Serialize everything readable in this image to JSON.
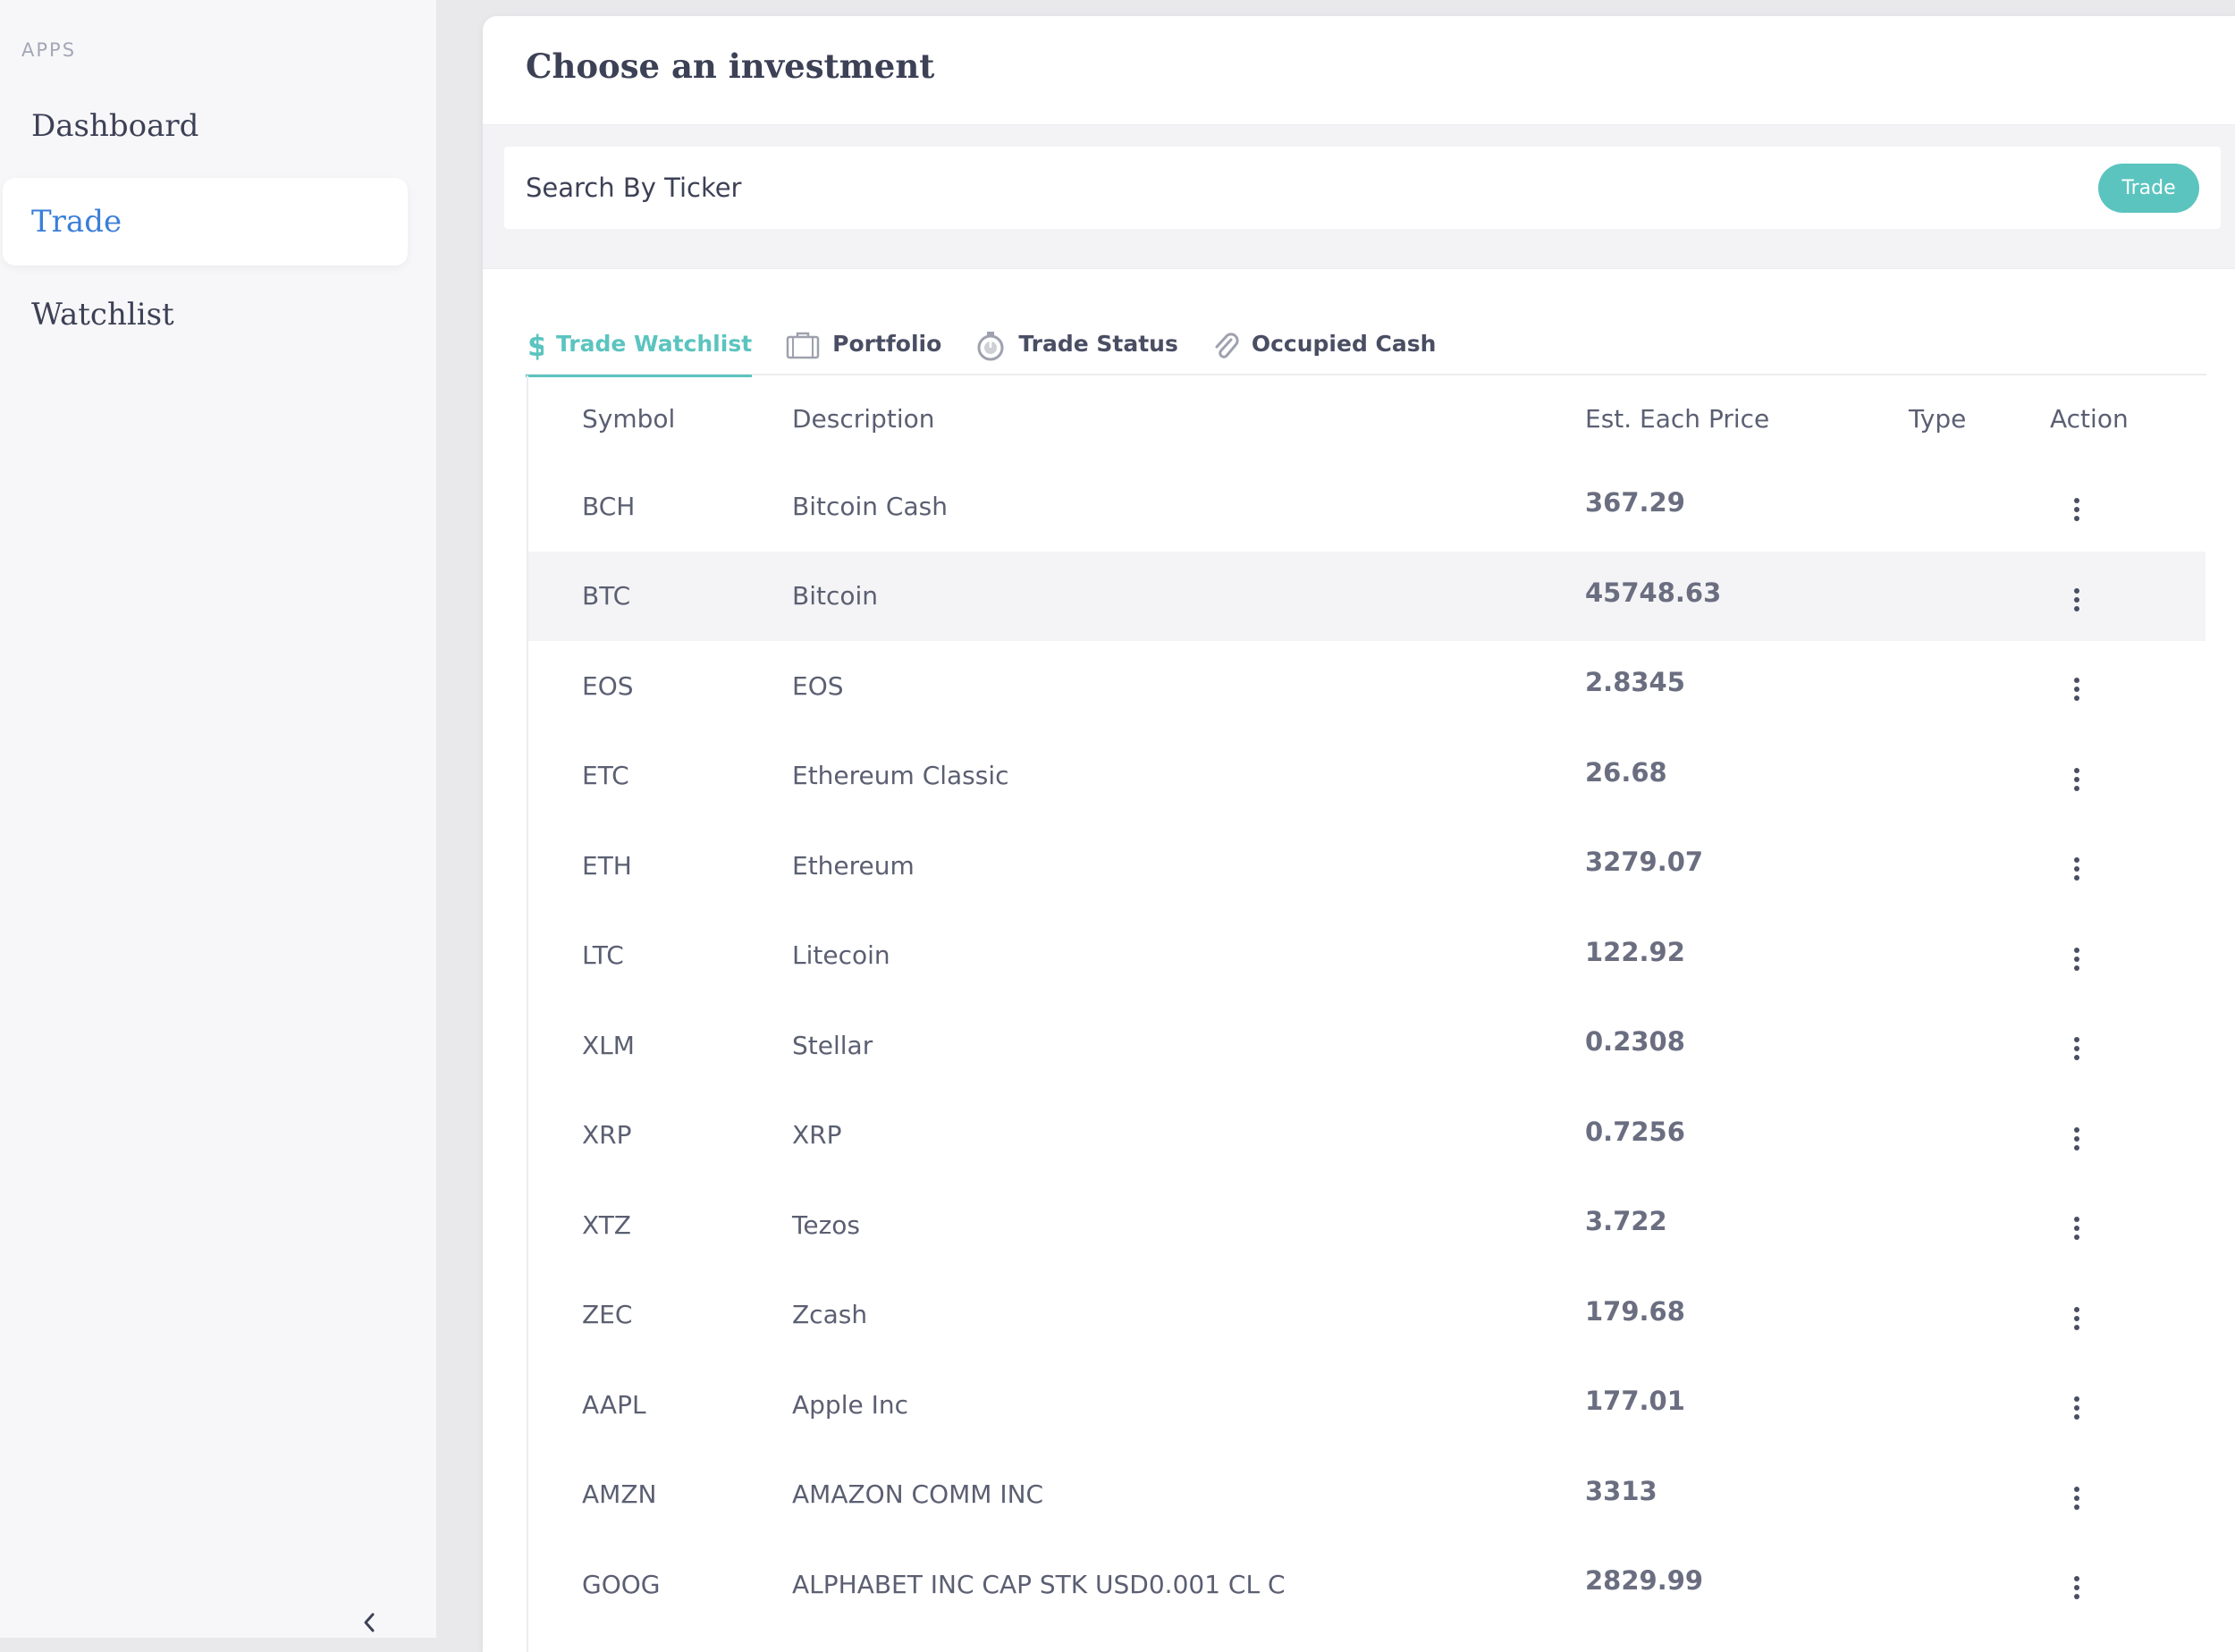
{
  "sidebar": {
    "section_label": "APPS",
    "items": [
      {
        "label": "Dashboard"
      },
      {
        "label": "Trade"
      },
      {
        "label": "Watchlist"
      }
    ]
  },
  "panel": {
    "title": "Choose an investment"
  },
  "search": {
    "placeholder": "Search By Ticker",
    "button_label": "Trade"
  },
  "tabs": [
    {
      "label": "Trade Watchlist",
      "icon": "dollar-icon"
    },
    {
      "label": "Portfolio",
      "icon": "briefcase-icon"
    },
    {
      "label": "Trade Status",
      "icon": "stopwatch-icon"
    },
    {
      "label": "Occupied Cash",
      "icon": "paperclip-icon"
    }
  ],
  "table": {
    "headers": {
      "symbol": "Symbol",
      "description": "Description",
      "price": "Est. Each Price",
      "type": "Type",
      "action": "Action"
    },
    "rows": [
      {
        "symbol": "BCH",
        "description": "Bitcoin Cash",
        "price": "367.29",
        "type": ""
      },
      {
        "symbol": "BTC",
        "description": "Bitcoin",
        "price": "45748.63",
        "type": ""
      },
      {
        "symbol": "EOS",
        "description": "EOS",
        "price": "2.8345",
        "type": ""
      },
      {
        "symbol": "ETC",
        "description": "Ethereum Classic",
        "price": "26.68",
        "type": ""
      },
      {
        "symbol": "ETH",
        "description": "Ethereum",
        "price": "3279.07",
        "type": ""
      },
      {
        "symbol": "LTC",
        "description": "Litecoin",
        "price": "122.92",
        "type": ""
      },
      {
        "symbol": "XLM",
        "description": "Stellar",
        "price": "0.2308",
        "type": ""
      },
      {
        "symbol": "XRP",
        "description": "XRP",
        "price": "0.7256",
        "type": ""
      },
      {
        "symbol": "XTZ",
        "description": "Tezos",
        "price": "3.722",
        "type": ""
      },
      {
        "symbol": "ZEC",
        "description": "Zcash",
        "price": "179.68",
        "type": ""
      },
      {
        "symbol": "AAPL",
        "description": "Apple Inc",
        "price": "177.01",
        "type": ""
      },
      {
        "symbol": "AMZN",
        "description": "AMAZON COMM INC",
        "price": "3313",
        "type": ""
      },
      {
        "symbol": "GOOG",
        "description": "ALPHABET INC CAP STK USD0.001 CL C",
        "price": "2829.99",
        "type": ""
      }
    ]
  },
  "colors": {
    "accent": "#5bc4bf",
    "active_nav": "#3a7fd8"
  }
}
